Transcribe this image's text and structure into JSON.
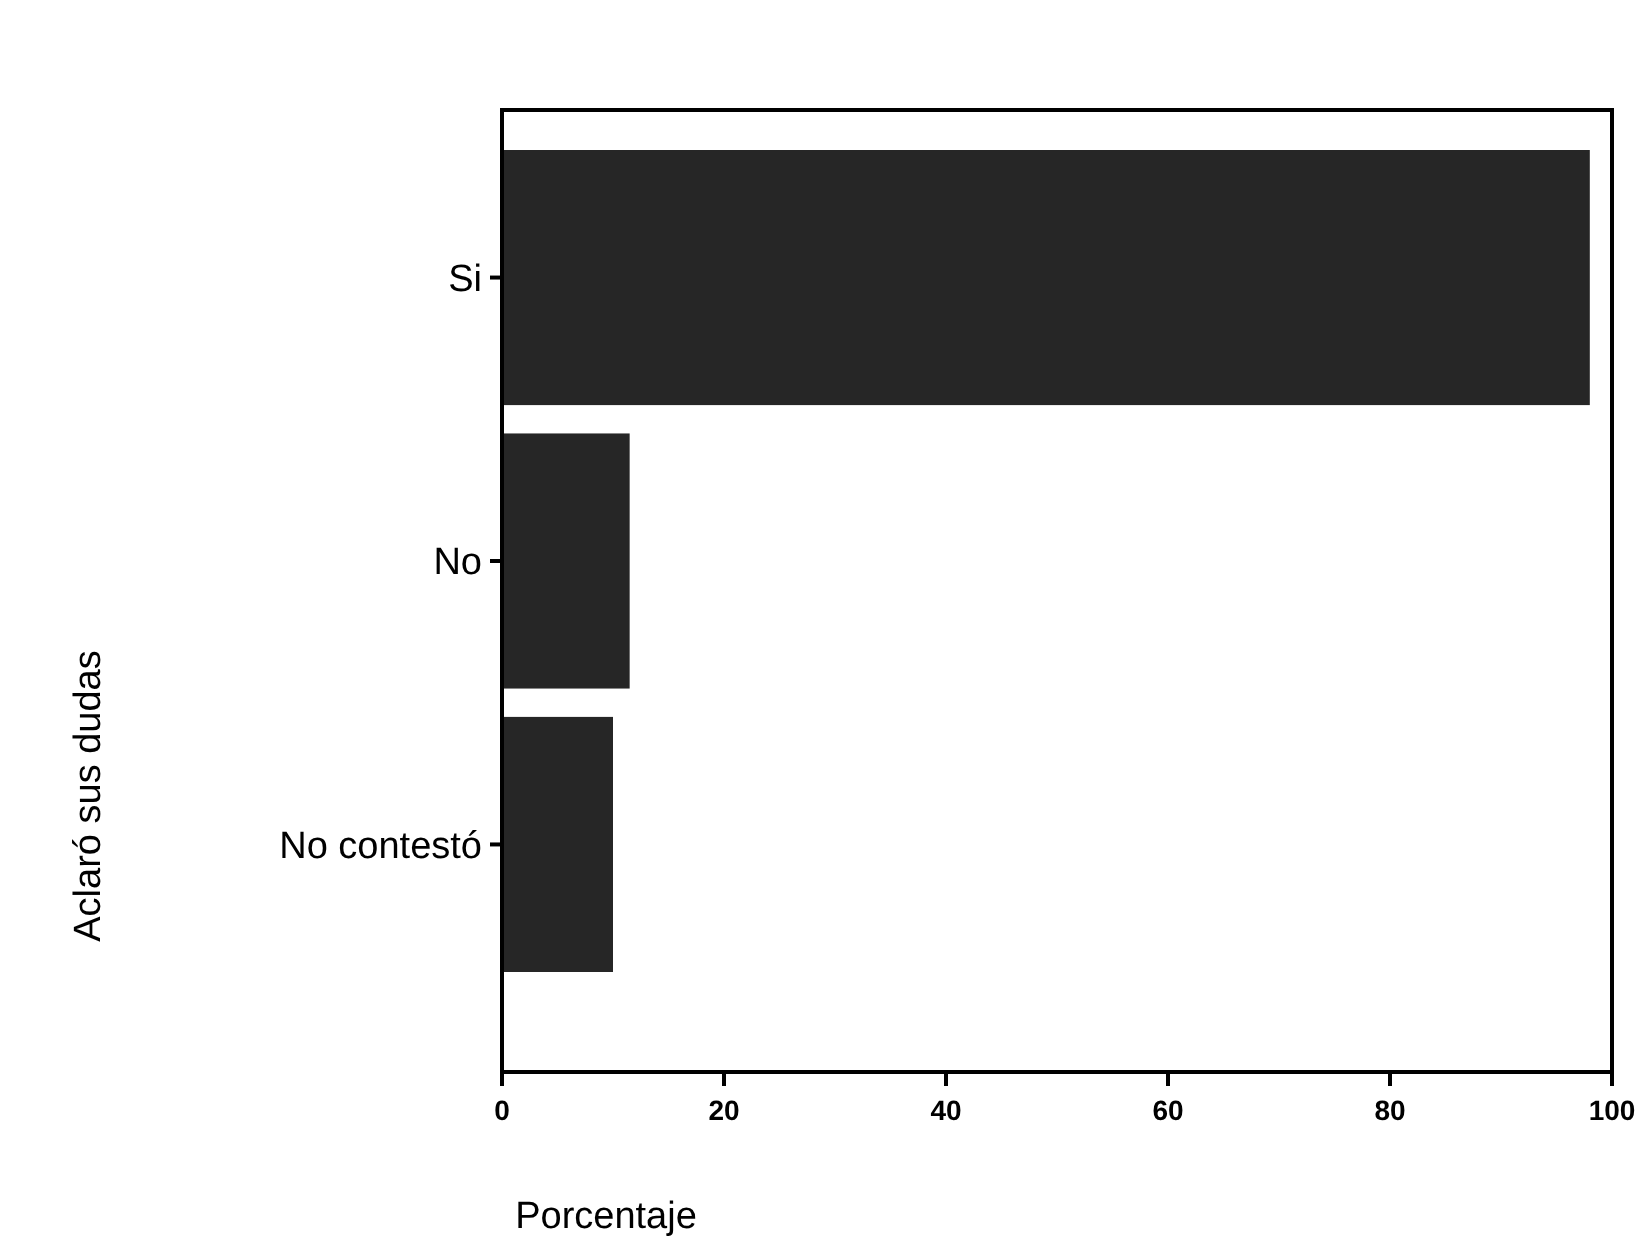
{
  "chart_data": {
    "type": "bar",
    "orientation": "horizontal",
    "categories": [
      "Si",
      "No",
      "No contestó"
    ],
    "values": [
      98,
      11.5,
      10
    ],
    "color": "#262626",
    "xlim": [
      0,
      100
    ],
    "xticks": [
      0,
      20,
      40,
      60,
      80,
      100
    ],
    "xlabel": "Porcentaje",
    "ylabel": "Aclaró sus dudas",
    "grid": false
  }
}
